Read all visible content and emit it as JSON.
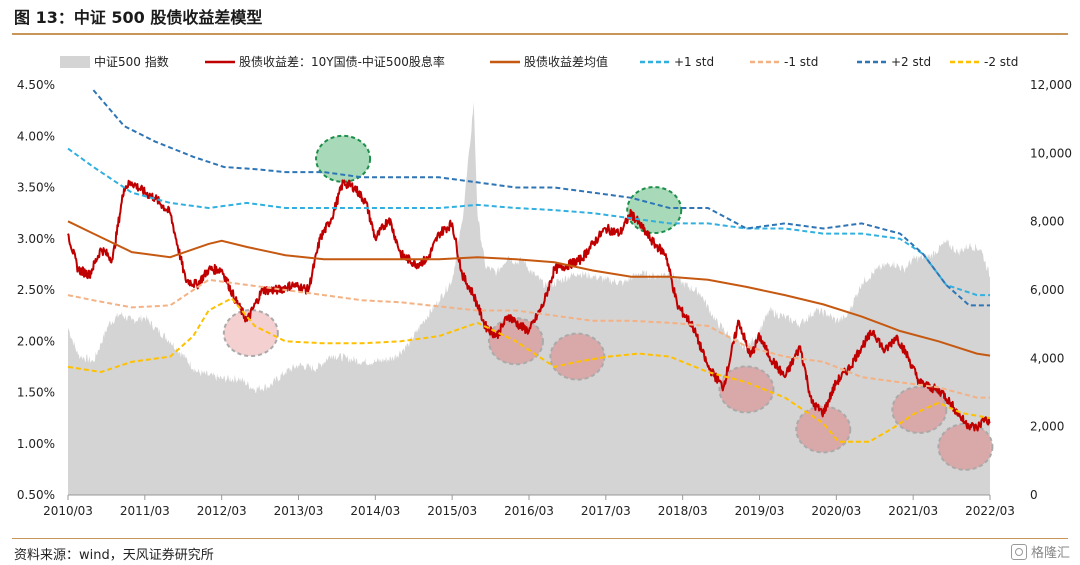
{
  "header": {
    "title": "图 13：中证 500 股债收益差模型"
  },
  "footer": {
    "source": "资料来源：wind，天风证券研究所",
    "watermark": "格隆汇"
  },
  "chart_data": {
    "type": "line",
    "title": "图 13：中证 500 股债收益差模型",
    "x_ticks": [
      "2010/03",
      "2011/03",
      "2012/03",
      "2013/03",
      "2014/03",
      "2015/03",
      "2016/03",
      "2017/03",
      "2018/03",
      "2019/03",
      "2020/03",
      "2021/03",
      "2022/03"
    ],
    "y_left_ticks": [
      "0.50%",
      "1.00%",
      "1.50%",
      "2.00%",
      "2.50%",
      "3.00%",
      "3.50%",
      "4.00%",
      "4.50%"
    ],
    "y_right_ticks": [
      "0",
      "2,000",
      "4,000",
      "6,000",
      "8,000",
      "10,000",
      "12,000"
    ],
    "y_left_range": [
      0.5,
      4.5
    ],
    "y_right_range": [
      0,
      12000
    ],
    "legend_placement": "top",
    "series": [
      {
        "name": "中证500 指数",
        "kind": "area",
        "axis": "right",
        "color": "#d4d4d4",
        "x": [
          2010.17,
          2010.3,
          2010.5,
          2010.7,
          2010.85,
          2011.0,
          2011.17,
          2011.3,
          2011.5,
          2011.7,
          2011.85,
          2012.0,
          2012.17,
          2012.4,
          2012.6,
          2012.8,
          2013.0,
          2013.17,
          2013.4,
          2013.6,
          2013.8,
          2014.0,
          2014.17,
          2014.4,
          2014.6,
          2014.8,
          2015.0,
          2015.17,
          2015.3,
          2015.4,
          2015.45,
          2015.5,
          2015.6,
          2015.75,
          2015.9,
          2016.0,
          2016.1,
          2016.17,
          2016.4,
          2016.6,
          2016.8,
          2017.0,
          2017.17,
          2017.4,
          2017.6,
          2017.8,
          2018.0,
          2018.17,
          2018.4,
          2018.6,
          2018.8,
          2019.0,
          2019.17,
          2019.3,
          2019.5,
          2019.7,
          2019.9,
          2020.05,
          2020.17,
          2020.3,
          2020.5,
          2020.7,
          2020.9,
          2021.05,
          2021.17,
          2021.4,
          2021.6,
          2021.75,
          2021.9,
          2022.05,
          2022.17
        ],
        "y": [
          4900,
          4100,
          3900,
          5000,
          5300,
          5100,
          5200,
          4900,
          4500,
          4000,
          3600,
          3500,
          3400,
          3400,
          3100,
          3200,
          3600,
          3800,
          3700,
          4100,
          4000,
          3900,
          3900,
          4000,
          4400,
          5100,
          5700,
          6300,
          8000,
          10200,
          11500,
          8200,
          6700,
          6500,
          7000,
          6800,
          6900,
          6600,
          6100,
          6300,
          6500,
          6400,
          6300,
          6200,
          6500,
          6400,
          6500,
          6200,
          5900,
          5100,
          4600,
          4300,
          4800,
          5400,
          5200,
          5000,
          5400,
          5300,
          5100,
          5200,
          6200,
          6600,
          6800,
          6600,
          6900,
          7000,
          7400,
          7100,
          7300,
          7200,
          6400
        ]
      },
      {
        "name": "股债收益差：10Y国债-中证500股息率",
        "kind": "line",
        "axis": "left",
        "color": "#c00000",
        "x": [
          2010.17,
          2010.3,
          2010.45,
          2010.6,
          2010.75,
          2010.9,
          2011.0,
          2011.17,
          2011.3,
          2011.5,
          2011.7,
          2011.85,
          2012.0,
          2012.17,
          2012.35,
          2012.5,
          2012.7,
          2012.9,
          2013.1,
          2013.3,
          2013.45,
          2013.6,
          2013.75,
          2013.9,
          2014.05,
          2014.17,
          2014.35,
          2014.5,
          2014.7,
          2014.85,
          2015.0,
          2015.17,
          2015.3,
          2015.45,
          2015.6,
          2015.75,
          2015.9,
          2016.05,
          2016.17,
          2016.35,
          2016.5,
          2016.7,
          2016.85,
          2017.0,
          2017.17,
          2017.35,
          2017.5,
          2017.65,
          2017.8,
          2017.95,
          2018.1,
          2018.3,
          2018.5,
          2018.7,
          2018.9,
          2019.05,
          2019.17,
          2019.3,
          2019.5,
          2019.7,
          2019.85,
          2020.0,
          2020.17,
          2020.35,
          2020.5,
          2020.65,
          2020.8,
          2020.95,
          2021.1,
          2021.25,
          2021.4,
          2021.55,
          2021.7,
          2021.85,
          2022.0,
          2022.1,
          2022.17
        ],
        "y": [
          3.05,
          2.7,
          2.65,
          2.9,
          2.8,
          3.5,
          3.55,
          3.45,
          3.4,
          3.25,
          2.6,
          2.55,
          2.7,
          2.7,
          2.4,
          2.2,
          2.5,
          2.5,
          2.55,
          2.5,
          3.0,
          3.2,
          3.55,
          3.5,
          3.35,
          3.0,
          3.2,
          2.85,
          2.75,
          2.8,
          3.05,
          3.15,
          2.65,
          2.45,
          2.15,
          2.05,
          2.25,
          2.15,
          2.1,
          2.35,
          2.7,
          2.75,
          2.8,
          2.95,
          3.1,
          3.05,
          3.25,
          3.1,
          2.95,
          2.85,
          2.35,
          2.15,
          1.75,
          1.55,
          2.2,
          1.85,
          2.05,
          1.85,
          1.65,
          1.95,
          1.4,
          1.3,
          1.6,
          1.75,
          1.95,
          2.1,
          1.9,
          2.05,
          1.85,
          1.6,
          1.55,
          1.5,
          1.35,
          1.2,
          1.15,
          1.25,
          1.2
        ]
      },
      {
        "name": "股债收益差均值",
        "kind": "line",
        "axis": "left",
        "color": "#c65911",
        "x": [
          2010.17,
          2010.5,
          2011.0,
          2011.5,
          2012.0,
          2012.17,
          2012.5,
          2013.0,
          2013.5,
          2014.0,
          2014.5,
          2015.0,
          2015.5,
          2016.0,
          2016.5,
          2017.0,
          2017.5,
          2018.0,
          2018.5,
          2019.0,
          2019.5,
          2020.0,
          2020.5,
          2021.0,
          2021.5,
          2022.0,
          2022.17
        ],
        "y": [
          3.17,
          3.05,
          2.87,
          2.82,
          2.95,
          2.98,
          2.92,
          2.84,
          2.8,
          2.8,
          2.8,
          2.8,
          2.82,
          2.8,
          2.77,
          2.69,
          2.63,
          2.63,
          2.6,
          2.53,
          2.45,
          2.36,
          2.24,
          2.1,
          2.0,
          1.88,
          1.86
        ]
      },
      {
        "name": "+1 std",
        "kind": "dashed",
        "axis": "left",
        "color": "#31b0e0",
        "x": [
          2010.17,
          2010.5,
          2011.0,
          2011.5,
          2012.0,
          2012.5,
          2013.0,
          2013.5,
          2014.0,
          2014.5,
          2015.0,
          2015.5,
          2016.0,
          2016.5,
          2017.0,
          2017.5,
          2018.0,
          2018.5,
          2019.0,
          2019.5,
          2020.0,
          2020.5,
          2021.0,
          2021.3,
          2021.6,
          2022.0,
          2022.17
        ],
        "y": [
          3.88,
          3.7,
          3.45,
          3.35,
          3.3,
          3.35,
          3.3,
          3.3,
          3.3,
          3.3,
          3.3,
          3.33,
          3.3,
          3.28,
          3.25,
          3.2,
          3.15,
          3.15,
          3.1,
          3.1,
          3.05,
          3.05,
          3.0,
          2.85,
          2.55,
          2.45,
          2.45
        ]
      },
      {
        "name": "-1 std",
        "kind": "dashed",
        "axis": "left",
        "color": "#f4b183",
        "x": [
          2010.17,
          2010.5,
          2011.0,
          2011.5,
          2012.0,
          2012.5,
          2013.0,
          2013.5,
          2014.0,
          2014.5,
          2015.0,
          2015.5,
          2016.0,
          2016.5,
          2017.0,
          2017.5,
          2018.0,
          2018.5,
          2019.0,
          2019.5,
          2020.0,
          2020.5,
          2021.0,
          2021.5,
          2022.0,
          2022.17
        ],
        "y": [
          2.45,
          2.4,
          2.33,
          2.35,
          2.6,
          2.55,
          2.5,
          2.45,
          2.4,
          2.38,
          2.34,
          2.3,
          2.3,
          2.25,
          2.2,
          2.2,
          2.18,
          2.15,
          1.95,
          1.85,
          1.8,
          1.65,
          1.6,
          1.55,
          1.45,
          1.45
        ]
      },
      {
        "name": "+2 std",
        "kind": "dashed",
        "axis": "left",
        "color": "#2e75b6",
        "x": [
          2010.5,
          2010.9,
          2011.3,
          2011.8,
          2012.2,
          2012.6,
          2013.0,
          2013.5,
          2014.0,
          2014.5,
          2015.0,
          2015.5,
          2016.0,
          2016.5,
          2017.0,
          2017.5,
          2018.0,
          2018.5,
          2019.0,
          2019.5,
          2020.0,
          2020.5,
          2021.0,
          2021.3,
          2021.6,
          2021.9,
          2022.17
        ],
        "y": [
          4.45,
          4.1,
          3.95,
          3.8,
          3.7,
          3.68,
          3.65,
          3.65,
          3.6,
          3.6,
          3.6,
          3.55,
          3.5,
          3.5,
          3.45,
          3.4,
          3.3,
          3.3,
          3.1,
          3.15,
          3.1,
          3.15,
          3.05,
          2.85,
          2.55,
          2.35,
          2.35
        ]
      },
      {
        "name": "-2 std",
        "kind": "dashed",
        "axis": "left",
        "color": "#ffc000",
        "x": [
          2010.17,
          2010.6,
          2011.0,
          2011.5,
          2011.8,
          2012.0,
          2012.3,
          2012.6,
          2013.0,
          2013.5,
          2014.0,
          2014.5,
          2015.0,
          2015.5,
          2016.0,
          2016.5,
          2016.8,
          2017.2,
          2017.6,
          2018.0,
          2018.5,
          2019.0,
          2019.5,
          2020.0,
          2020.2,
          2020.6,
          2020.9,
          2021.2,
          2021.5,
          2021.8,
          2022.17
        ],
        "y": [
          1.75,
          1.7,
          1.8,
          1.85,
          2.05,
          2.3,
          2.42,
          2.15,
          2.0,
          1.98,
          1.98,
          2.0,
          2.05,
          2.18,
          2.0,
          1.75,
          1.8,
          1.85,
          1.88,
          1.85,
          1.7,
          1.6,
          1.45,
          1.2,
          1.02,
          1.02,
          1.15,
          1.3,
          1.4,
          1.3,
          1.25
        ]
      }
    ],
    "annotations": [
      {
        "kind": "high",
        "x": 2013.75,
        "y": 3.78,
        "color": "#92d1a7"
      },
      {
        "kind": "high",
        "x": 2017.8,
        "y": 3.28,
        "color": "#92d1a7"
      },
      {
        "kind": "low",
        "x": 2012.55,
        "y": 2.08,
        "color": "#f2c4c4"
      },
      {
        "kind": "low",
        "x": 2016.0,
        "y": 2.0,
        "color": "#d99c9c"
      },
      {
        "kind": "low",
        "x": 2016.8,
        "y": 1.85,
        "color": "#d99c9c"
      },
      {
        "kind": "low",
        "x": 2019.0,
        "y": 1.53,
        "color": "#d99c9c"
      },
      {
        "kind": "low",
        "x": 2020.0,
        "y": 1.14,
        "color": "#d99c9c"
      },
      {
        "kind": "low",
        "x": 2021.25,
        "y": 1.33,
        "color": "#d99c9c"
      },
      {
        "kind": "low",
        "x": 2021.85,
        "y": 0.97,
        "color": "#d99c9c"
      }
    ]
  }
}
